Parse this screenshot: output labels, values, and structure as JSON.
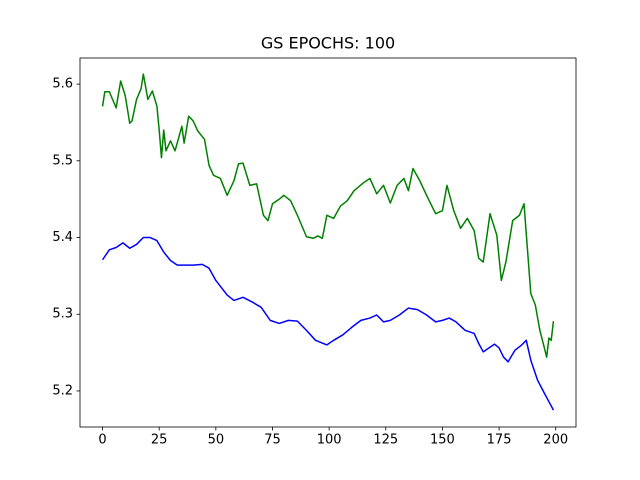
{
  "chart_data": {
    "type": "line",
    "title": "GS EPOCHS: 100",
    "xlim": [
      -9.95,
      208.95
    ],
    "xticks": [
      0,
      25,
      50,
      75,
      100,
      125,
      150,
      175,
      200
    ],
    "ylim": [
      5.153,
      5.634
    ],
    "yticks": [
      5.2,
      5.3,
      5.4,
      5.5,
      5.6
    ],
    "grid": false,
    "series": [
      {
        "color": "#008000",
        "x": [
          0,
          1,
          3,
          6,
          8,
          10,
          12,
          13,
          15,
          17,
          18,
          20,
          22,
          24,
          25,
          26,
          27,
          28,
          30,
          32,
          35,
          36,
          38,
          40,
          42,
          45,
          47,
          49,
          52,
          55,
          58,
          60,
          62,
          65,
          68,
          71,
          73,
          75,
          78,
          80,
          83,
          86,
          90,
          93,
          95,
          97,
          99,
          102,
          105,
          108,
          111,
          115,
          118,
          121,
          124,
          127,
          130,
          133,
          135,
          137,
          140,
          143,
          147,
          150,
          152,
          155,
          158,
          161,
          164,
          166,
          168,
          171,
          174,
          176,
          178,
          181,
          184,
          186,
          189,
          191,
          193,
          195,
          196,
          197,
          198,
          199
        ],
        "values": [
          5.571,
          5.59,
          5.59,
          5.569,
          5.604,
          5.585,
          5.549,
          5.552,
          5.58,
          5.594,
          5.613,
          5.58,
          5.591,
          5.571,
          5.54,
          5.504,
          5.54,
          5.513,
          5.526,
          5.513,
          5.545,
          5.523,
          5.558,
          5.552,
          5.539,
          5.528,
          5.494,
          5.481,
          5.477,
          5.455,
          5.474,
          5.496,
          5.497,
          5.468,
          5.47,
          5.429,
          5.422,
          5.444,
          5.45,
          5.455,
          5.448,
          5.429,
          5.401,
          5.399,
          5.402,
          5.399,
          5.429,
          5.425,
          5.441,
          5.448,
          5.461,
          5.471,
          5.477,
          5.457,
          5.468,
          5.445,
          5.468,
          5.477,
          5.461,
          5.49,
          5.474,
          5.455,
          5.431,
          5.435,
          5.468,
          5.435,
          5.412,
          5.425,
          5.409,
          5.373,
          5.368,
          5.431,
          5.403,
          5.344,
          5.368,
          5.422,
          5.429,
          5.444,
          5.327,
          5.312,
          5.279,
          5.256,
          5.244,
          5.269,
          5.266,
          5.291
        ]
      },
      {
        "color": "#0000ff",
        "x": [
          0,
          3,
          6,
          9,
          12,
          15,
          18,
          21,
          24,
          27,
          30,
          33,
          36,
          40,
          44,
          47,
          50,
          55,
          58,
          62,
          66,
          70,
          74,
          78,
          82,
          86,
          90,
          94,
          99,
          102,
          106,
          110,
          114,
          118,
          121,
          124,
          127,
          131,
          135,
          139,
          143,
          147,
          150,
          153,
          156,
          160,
          164,
          166,
          168,
          170,
          173,
          175,
          177,
          179,
          182,
          185,
          187,
          189,
          192,
          195,
          197,
          199
        ],
        "values": [
          5.371,
          5.384,
          5.387,
          5.393,
          5.386,
          5.391,
          5.4,
          5.4,
          5.396,
          5.381,
          5.37,
          5.364,
          5.364,
          5.364,
          5.365,
          5.36,
          5.344,
          5.325,
          5.318,
          5.322,
          5.316,
          5.309,
          5.292,
          5.288,
          5.292,
          5.291,
          5.279,
          5.266,
          5.26,
          5.266,
          5.273,
          5.283,
          5.292,
          5.295,
          5.299,
          5.29,
          5.292,
          5.299,
          5.308,
          5.306,
          5.299,
          5.29,
          5.292,
          5.295,
          5.29,
          5.279,
          5.275,
          5.262,
          5.251,
          5.255,
          5.261,
          5.256,
          5.244,
          5.238,
          5.253,
          5.26,
          5.266,
          5.24,
          5.214,
          5.197,
          5.186,
          5.175
        ]
      }
    ]
  }
}
